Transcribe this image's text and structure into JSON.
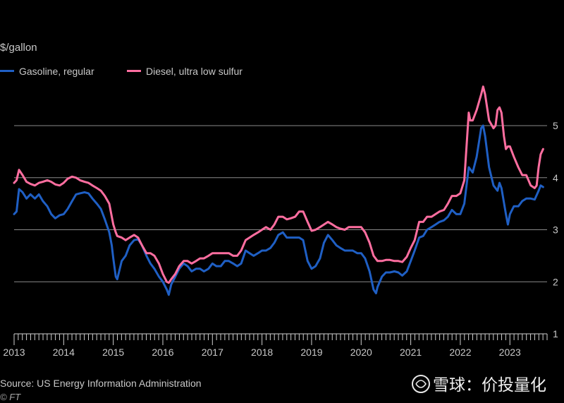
{
  "chart_data": {
    "type": "line",
    "ylabel": "$/gallon",
    "ylim": [
      1,
      5.5
    ],
    "yticks": [
      1,
      2,
      3,
      4,
      5
    ],
    "xlim": [
      2013,
      2023.75
    ],
    "xticks": [
      "2013",
      "2014",
      "2015",
      "2016",
      "2017",
      "2018",
      "2019",
      "2020",
      "2021",
      "2022",
      "2023"
    ],
    "grid": "horizontal",
    "legend_position": "top-left",
    "series": [
      {
        "name": "Gasoline, regular",
        "color": "#1f5fc4",
        "points": [
          [
            2013.0,
            3.3
          ],
          [
            2013.05,
            3.35
          ],
          [
            2013.1,
            3.78
          ],
          [
            2013.17,
            3.72
          ],
          [
            2013.25,
            3.6
          ],
          [
            2013.33,
            3.68
          ],
          [
            2013.42,
            3.6
          ],
          [
            2013.5,
            3.68
          ],
          [
            2013.58,
            3.55
          ],
          [
            2013.67,
            3.45
          ],
          [
            2013.75,
            3.3
          ],
          [
            2013.83,
            3.22
          ],
          [
            2013.92,
            3.28
          ],
          [
            2014.0,
            3.3
          ],
          [
            2014.08,
            3.4
          ],
          [
            2014.17,
            3.55
          ],
          [
            2014.25,
            3.68
          ],
          [
            2014.33,
            3.7
          ],
          [
            2014.42,
            3.72
          ],
          [
            2014.5,
            3.7
          ],
          [
            2014.58,
            3.6
          ],
          [
            2014.67,
            3.5
          ],
          [
            2014.75,
            3.4
          ],
          [
            2014.83,
            3.2
          ],
          [
            2014.92,
            2.95
          ],
          [
            2014.97,
            2.7
          ],
          [
            2015.0,
            2.45
          ],
          [
            2015.05,
            2.1
          ],
          [
            2015.08,
            2.05
          ],
          [
            2015.17,
            2.4
          ],
          [
            2015.25,
            2.5
          ],
          [
            2015.33,
            2.7
          ],
          [
            2015.42,
            2.8
          ],
          [
            2015.5,
            2.82
          ],
          [
            2015.58,
            2.7
          ],
          [
            2015.67,
            2.5
          ],
          [
            2015.75,
            2.35
          ],
          [
            2015.83,
            2.25
          ],
          [
            2015.92,
            2.1
          ],
          [
            2016.0,
            2.0
          ],
          [
            2016.08,
            1.85
          ],
          [
            2016.12,
            1.75
          ],
          [
            2016.17,
            1.95
          ],
          [
            2016.25,
            2.1
          ],
          [
            2016.33,
            2.25
          ],
          [
            2016.42,
            2.35
          ],
          [
            2016.5,
            2.3
          ],
          [
            2016.58,
            2.2
          ],
          [
            2016.67,
            2.25
          ],
          [
            2016.75,
            2.25
          ],
          [
            2016.83,
            2.2
          ],
          [
            2016.92,
            2.25
          ],
          [
            2017.0,
            2.35
          ],
          [
            2017.08,
            2.3
          ],
          [
            2017.17,
            2.3
          ],
          [
            2017.25,
            2.4
          ],
          [
            2017.33,
            2.4
          ],
          [
            2017.42,
            2.35
          ],
          [
            2017.5,
            2.3
          ],
          [
            2017.58,
            2.35
          ],
          [
            2017.67,
            2.6
          ],
          [
            2017.75,
            2.55
          ],
          [
            2017.83,
            2.5
          ],
          [
            2017.92,
            2.55
          ],
          [
            2018.0,
            2.6
          ],
          [
            2018.08,
            2.6
          ],
          [
            2018.17,
            2.65
          ],
          [
            2018.25,
            2.75
          ],
          [
            2018.33,
            2.9
          ],
          [
            2018.42,
            2.95
          ],
          [
            2018.5,
            2.85
          ],
          [
            2018.58,
            2.85
          ],
          [
            2018.67,
            2.85
          ],
          [
            2018.75,
            2.85
          ],
          [
            2018.83,
            2.8
          ],
          [
            2018.92,
            2.4
          ],
          [
            2019.0,
            2.25
          ],
          [
            2019.08,
            2.3
          ],
          [
            2019.17,
            2.45
          ],
          [
            2019.25,
            2.75
          ],
          [
            2019.33,
            2.9
          ],
          [
            2019.42,
            2.8
          ],
          [
            2019.5,
            2.7
          ],
          [
            2019.58,
            2.65
          ],
          [
            2019.67,
            2.6
          ],
          [
            2019.75,
            2.6
          ],
          [
            2019.83,
            2.6
          ],
          [
            2019.92,
            2.55
          ],
          [
            2020.0,
            2.55
          ],
          [
            2020.08,
            2.45
          ],
          [
            2020.17,
            2.2
          ],
          [
            2020.25,
            1.85
          ],
          [
            2020.3,
            1.78
          ],
          [
            2020.33,
            1.9
          ],
          [
            2020.42,
            2.1
          ],
          [
            2020.5,
            2.18
          ],
          [
            2020.58,
            2.18
          ],
          [
            2020.67,
            2.2
          ],
          [
            2020.75,
            2.18
          ],
          [
            2020.83,
            2.12
          ],
          [
            2020.92,
            2.2
          ],
          [
            2021.0,
            2.4
          ],
          [
            2021.08,
            2.6
          ],
          [
            2021.17,
            2.85
          ],
          [
            2021.25,
            2.88
          ],
          [
            2021.33,
            3.0
          ],
          [
            2021.42,
            3.05
          ],
          [
            2021.5,
            3.1
          ],
          [
            2021.58,
            3.15
          ],
          [
            2021.67,
            3.18
          ],
          [
            2021.75,
            3.25
          ],
          [
            2021.83,
            3.38
          ],
          [
            2021.92,
            3.3
          ],
          [
            2022.0,
            3.3
          ],
          [
            2022.08,
            3.5
          ],
          [
            2022.17,
            4.2
          ],
          [
            2022.25,
            4.1
          ],
          [
            2022.33,
            4.4
          ],
          [
            2022.42,
            4.95
          ],
          [
            2022.46,
            5.0
          ],
          [
            2022.5,
            4.8
          ],
          [
            2022.58,
            4.2
          ],
          [
            2022.67,
            3.85
          ],
          [
            2022.75,
            3.75
          ],
          [
            2022.79,
            3.9
          ],
          [
            2022.83,
            3.8
          ],
          [
            2022.92,
            3.3
          ],
          [
            2022.96,
            3.1
          ],
          [
            2023.0,
            3.3
          ],
          [
            2023.08,
            3.45
          ],
          [
            2023.17,
            3.45
          ],
          [
            2023.25,
            3.55
          ],
          [
            2023.33,
            3.6
          ],
          [
            2023.42,
            3.6
          ],
          [
            2023.5,
            3.58
          ],
          [
            2023.58,
            3.75
          ],
          [
            2023.62,
            3.85
          ],
          [
            2023.67,
            3.82
          ]
        ]
      },
      {
        "name": "Diesel, ultra low sulfur",
        "color": "#ff6ea0",
        "points": [
          [
            2013.0,
            3.9
          ],
          [
            2013.05,
            3.95
          ],
          [
            2013.1,
            4.15
          ],
          [
            2013.17,
            4.05
          ],
          [
            2013.25,
            3.92
          ],
          [
            2013.33,
            3.88
          ],
          [
            2013.42,
            3.85
          ],
          [
            2013.5,
            3.9
          ],
          [
            2013.58,
            3.92
          ],
          [
            2013.67,
            3.95
          ],
          [
            2013.75,
            3.92
          ],
          [
            2013.83,
            3.87
          ],
          [
            2013.92,
            3.85
          ],
          [
            2014.0,
            3.9
          ],
          [
            2014.08,
            3.98
          ],
          [
            2014.17,
            4.02
          ],
          [
            2014.25,
            4.0
          ],
          [
            2014.33,
            3.95
          ],
          [
            2014.42,
            3.92
          ],
          [
            2014.5,
            3.9
          ],
          [
            2014.58,
            3.85
          ],
          [
            2014.67,
            3.8
          ],
          [
            2014.75,
            3.75
          ],
          [
            2014.83,
            3.65
          ],
          [
            2014.92,
            3.5
          ],
          [
            2015.0,
            3.1
          ],
          [
            2015.05,
            2.95
          ],
          [
            2015.08,
            2.88
          ],
          [
            2015.17,
            2.85
          ],
          [
            2015.25,
            2.8
          ],
          [
            2015.33,
            2.85
          ],
          [
            2015.42,
            2.9
          ],
          [
            2015.5,
            2.85
          ],
          [
            2015.58,
            2.7
          ],
          [
            2015.67,
            2.55
          ],
          [
            2015.75,
            2.55
          ],
          [
            2015.83,
            2.5
          ],
          [
            2015.92,
            2.35
          ],
          [
            2016.0,
            2.15
          ],
          [
            2016.08,
            2.0
          ],
          [
            2016.12,
            1.98
          ],
          [
            2016.17,
            2.05
          ],
          [
            2016.25,
            2.15
          ],
          [
            2016.33,
            2.3
          ],
          [
            2016.42,
            2.4
          ],
          [
            2016.5,
            2.4
          ],
          [
            2016.58,
            2.35
          ],
          [
            2016.67,
            2.4
          ],
          [
            2016.75,
            2.45
          ],
          [
            2016.83,
            2.45
          ],
          [
            2016.92,
            2.5
          ],
          [
            2017.0,
            2.55
          ],
          [
            2017.08,
            2.55
          ],
          [
            2017.17,
            2.55
          ],
          [
            2017.25,
            2.55
          ],
          [
            2017.33,
            2.55
          ],
          [
            2017.42,
            2.5
          ],
          [
            2017.5,
            2.5
          ],
          [
            2017.58,
            2.6
          ],
          [
            2017.67,
            2.8
          ],
          [
            2017.75,
            2.85
          ],
          [
            2017.83,
            2.9
          ],
          [
            2017.92,
            2.95
          ],
          [
            2018.0,
            3.0
          ],
          [
            2018.08,
            3.05
          ],
          [
            2018.17,
            3.0
          ],
          [
            2018.25,
            3.1
          ],
          [
            2018.33,
            3.25
          ],
          [
            2018.42,
            3.25
          ],
          [
            2018.5,
            3.2
          ],
          [
            2018.58,
            3.22
          ],
          [
            2018.67,
            3.25
          ],
          [
            2018.75,
            3.35
          ],
          [
            2018.83,
            3.35
          ],
          [
            2018.92,
            3.15
          ],
          [
            2019.0,
            2.98
          ],
          [
            2019.08,
            3.0
          ],
          [
            2019.17,
            3.05
          ],
          [
            2019.25,
            3.1
          ],
          [
            2019.33,
            3.15
          ],
          [
            2019.42,
            3.1
          ],
          [
            2019.5,
            3.05
          ],
          [
            2019.58,
            3.02
          ],
          [
            2019.67,
            3.0
          ],
          [
            2019.75,
            3.05
          ],
          [
            2019.83,
            3.05
          ],
          [
            2019.92,
            3.05
          ],
          [
            2020.0,
            3.05
          ],
          [
            2020.08,
            2.95
          ],
          [
            2020.17,
            2.75
          ],
          [
            2020.25,
            2.5
          ],
          [
            2020.33,
            2.4
          ],
          [
            2020.42,
            2.4
          ],
          [
            2020.5,
            2.42
          ],
          [
            2020.58,
            2.42
          ],
          [
            2020.67,
            2.4
          ],
          [
            2020.75,
            2.4
          ],
          [
            2020.83,
            2.38
          ],
          [
            2020.92,
            2.48
          ],
          [
            2021.0,
            2.65
          ],
          [
            2021.08,
            2.8
          ],
          [
            2021.17,
            3.15
          ],
          [
            2021.25,
            3.15
          ],
          [
            2021.33,
            3.25
          ],
          [
            2021.42,
            3.25
          ],
          [
            2021.5,
            3.3
          ],
          [
            2021.58,
            3.35
          ],
          [
            2021.67,
            3.38
          ],
          [
            2021.75,
            3.5
          ],
          [
            2021.83,
            3.65
          ],
          [
            2021.92,
            3.65
          ],
          [
            2022.0,
            3.7
          ],
          [
            2022.08,
            3.95
          ],
          [
            2022.17,
            5.25
          ],
          [
            2022.2,
            5.1
          ],
          [
            2022.25,
            5.1
          ],
          [
            2022.33,
            5.3
          ],
          [
            2022.42,
            5.6
          ],
          [
            2022.46,
            5.75
          ],
          [
            2022.5,
            5.6
          ],
          [
            2022.58,
            5.1
          ],
          [
            2022.67,
            4.95
          ],
          [
            2022.71,
            5.0
          ],
          [
            2022.75,
            5.3
          ],
          [
            2022.79,
            5.35
          ],
          [
            2022.83,
            5.25
          ],
          [
            2022.88,
            4.8
          ],
          [
            2022.92,
            4.55
          ],
          [
            2022.96,
            4.6
          ],
          [
            2023.0,
            4.6
          ],
          [
            2023.08,
            4.4
          ],
          [
            2023.17,
            4.2
          ],
          [
            2023.25,
            4.05
          ],
          [
            2023.33,
            4.05
          ],
          [
            2023.42,
            3.85
          ],
          [
            2023.5,
            3.8
          ],
          [
            2023.54,
            3.85
          ],
          [
            2023.58,
            4.2
          ],
          [
            2023.62,
            4.45
          ],
          [
            2023.67,
            4.55
          ]
        ]
      }
    ]
  },
  "source": "Source: US Energy Information Administration",
  "credit": "© FT",
  "watermark": "雪球：价投量化"
}
